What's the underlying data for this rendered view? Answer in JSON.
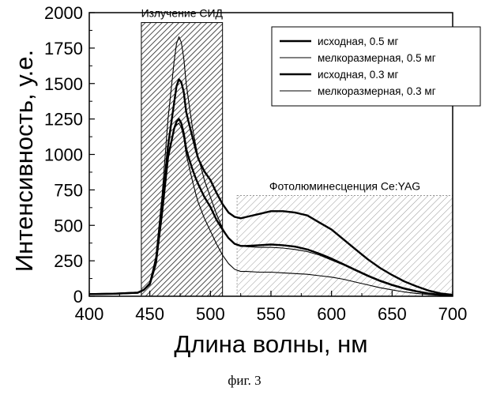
{
  "chart_data": {
    "type": "line",
    "xlabel": "Длина волны, нм",
    "ylabel": "Интенсивность, у.е.",
    "xlim": [
      400,
      700
    ],
    "ylim": [
      0,
      2000
    ],
    "x_ticks": [
      400,
      450,
      500,
      550,
      600,
      650,
      700
    ],
    "y_ticks": [
      0,
      250,
      500,
      750,
      1000,
      1250,
      1500,
      1750,
      2000
    ],
    "grid": false,
    "legend_position": "top-right",
    "regions": [
      {
        "label": "Излучение СИД",
        "x_range": [
          443,
          510
        ],
        "y_range": [
          0,
          1930
        ]
      },
      {
        "label": "Фотолюминесценция Ce:YAG",
        "x_range": [
          522,
          700
        ],
        "y_range": [
          0,
          710
        ]
      }
    ],
    "series": [
      {
        "name": "исходная, 0.5 мг",
        "style": "thick",
        "x": [
          400,
          420,
          440,
          445,
          450,
          455,
          460,
          465,
          470,
          472,
          474,
          476,
          478,
          480,
          482,
          485,
          488,
          490,
          495,
          500,
          505,
          510,
          515,
          520,
          525,
          530,
          540,
          550,
          560,
          570,
          580,
          590,
          600,
          610,
          620,
          630,
          640,
          650,
          660,
          670,
          680,
          690,
          700
        ],
        "y": [
          15,
          18,
          25,
          45,
          90,
          250,
          620,
          1060,
          1360,
          1480,
          1530,
          1510,
          1440,
          1300,
          1230,
          1130,
          1030,
          970,
          880,
          820,
          730,
          650,
          590,
          560,
          550,
          560,
          580,
          600,
          600,
          590,
          570,
          520,
          470,
          400,
          330,
          260,
          200,
          150,
          105,
          70,
          40,
          20,
          10
        ]
      },
      {
        "name": "мелкоразмерная, 0.5 мг",
        "style": "thin",
        "x": [
          400,
          420,
          440,
          445,
          450,
          455,
          460,
          465,
          470,
          472,
          474,
          476,
          478,
          480,
          482,
          485,
          488,
          490,
          495,
          500,
          505,
          510,
          515,
          520,
          525,
          530,
          540,
          550,
          560,
          570,
          580,
          590,
          600,
          610,
          620,
          630,
          640,
          650,
          660,
          670,
          680,
          690,
          700
        ],
        "y": [
          15,
          18,
          25,
          45,
          85,
          240,
          600,
          1000,
          1180,
          1210,
          1220,
          1190,
          1120,
          1000,
          930,
          820,
          720,
          660,
          550,
          460,
          370,
          290,
          230,
          190,
          175,
          175,
          170,
          170,
          165,
          160,
          155,
          145,
          135,
          120,
          100,
          80,
          60,
          45,
          30,
          20,
          12,
          6,
          3
        ]
      },
      {
        "name": "исходная, 0.3 мг",
        "style": "thick",
        "x": [
          400,
          420,
          440,
          445,
          450,
          455,
          460,
          465,
          470,
          472,
          474,
          476,
          478,
          480,
          482,
          485,
          488,
          490,
          495,
          500,
          505,
          510,
          515,
          520,
          525,
          530,
          540,
          550,
          560,
          570,
          580,
          590,
          600,
          610,
          620,
          630,
          640,
          650,
          660,
          670,
          680,
          690,
          700
        ],
        "y": [
          15,
          18,
          25,
          45,
          85,
          230,
          580,
          980,
          1180,
          1230,
          1250,
          1220,
          1150,
          1040,
          980,
          900,
          830,
          790,
          700,
          630,
          540,
          470,
          410,
          370,
          355,
          355,
          360,
          365,
          360,
          350,
          330,
          300,
          265,
          225,
          185,
          145,
          110,
          80,
          55,
          35,
          20,
          10,
          5
        ]
      },
      {
        "name": "мелкоразмерная, 0.3 мг",
        "style": "thin",
        "x": [
          400,
          420,
          440,
          445,
          450,
          455,
          460,
          465,
          470,
          472,
          474,
          476,
          478,
          480,
          482,
          485,
          488,
          490,
          495,
          500,
          505,
          510,
          515,
          520,
          525,
          530,
          540,
          550,
          560,
          570,
          580,
          590,
          600,
          610,
          620,
          630,
          640,
          650,
          660,
          670,
          680,
          690,
          700
        ],
        "y": [
          15,
          18,
          25,
          45,
          95,
          280,
          700,
          1250,
          1650,
          1780,
          1830,
          1790,
          1680,
          1500,
          1380,
          1200,
          1060,
          980,
          820,
          700,
          580,
          480,
          410,
          370,
          355,
          350,
          345,
          345,
          340,
          330,
          315,
          290,
          255,
          220,
          180,
          140,
          105,
          75,
          50,
          32,
          18,
          9,
          4
        ]
      }
    ]
  },
  "caption": "фиг. 3"
}
